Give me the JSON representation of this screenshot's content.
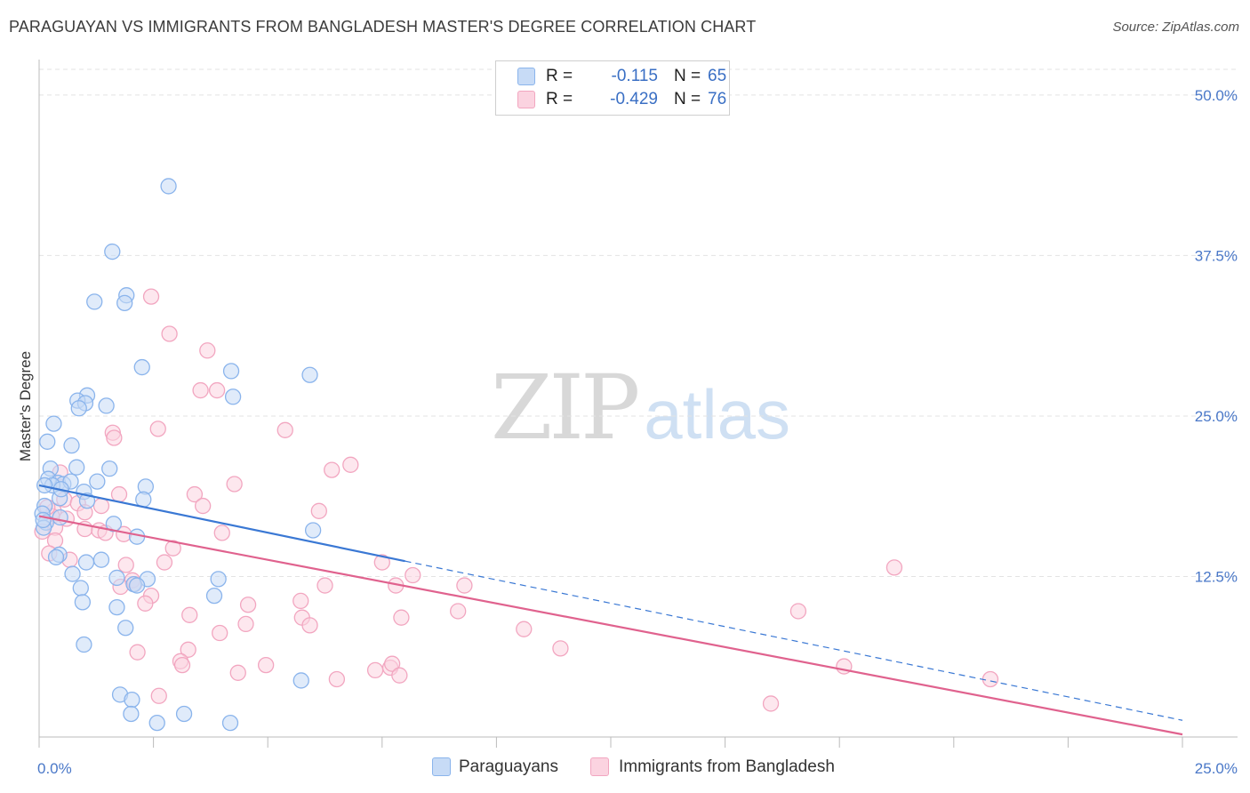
{
  "title": "PARAGUAYAN VS IMMIGRANTS FROM BANGLADESH MASTER'S DEGREE CORRELATION CHART",
  "source": "Source: ZipAtlas.com",
  "watermark": {
    "zip": "ZIP",
    "atlas": "atlas"
  },
  "legend": {
    "rows": [
      {
        "r_label": "R =",
        "r_value": "-0.115",
        "n_label": "N =",
        "n_value": "65",
        "color": "#8ab4ec",
        "fill": "#c7dbf6"
      },
      {
        "r_label": "R =",
        "r_value": "-0.429",
        "n_label": "N =",
        "n_value": "76",
        "color": "#f2a6c0",
        "fill": "#fbd3e0"
      }
    ]
  },
  "bottom_legend": [
    {
      "label": "Paraguayans",
      "color": "#8ab4ec",
      "fill": "#c7dbf6"
    },
    {
      "label": "Immigrants from Bangladesh",
      "color": "#f2a6c0",
      "fill": "#fbd3e0"
    }
  ],
  "chart_data": {
    "type": "scatter",
    "title": "PARAGUAYAN VS IMMIGRANTS FROM BANGLADESH MASTER'S DEGREE CORRELATION CHART",
    "xlabel": "",
    "ylabel": "Master's Degree",
    "xlim": [
      0,
      25
    ],
    "ylim": [
      0,
      52
    ],
    "x_tick_labels": [
      "0.0%",
      "25.0%"
    ],
    "y_ticks": [
      12.5,
      25.0,
      37.5,
      50.0
    ],
    "y_tick_labels": [
      "12.5%",
      "25.0%",
      "37.5%",
      "50.0%"
    ],
    "grid": true,
    "series": [
      {
        "name": "Paraguayans",
        "color": "#3a78d4",
        "marker_stroke": "#8ab4ec",
        "marker_fill": "#c7dbf6",
        "points": [
          [
            2.83,
            42.9
          ],
          [
            1.6,
            37.8
          ],
          [
            1.91,
            34.4
          ],
          [
            1.87,
            33.8
          ],
          [
            1.21,
            33.9
          ],
          [
            2.25,
            28.8
          ],
          [
            4.2,
            28.5
          ],
          [
            5.92,
            28.2
          ],
          [
            1.05,
            26.6
          ],
          [
            0.84,
            26.2
          ],
          [
            1.01,
            26.0
          ],
          [
            0.87,
            25.6
          ],
          [
            4.24,
            26.5
          ],
          [
            1.47,
            25.8
          ],
          [
            0.32,
            24.4
          ],
          [
            0.18,
            23.0
          ],
          [
            0.71,
            22.7
          ],
          [
            0.82,
            21.0
          ],
          [
            1.54,
            20.9
          ],
          [
            0.25,
            20.9
          ],
          [
            0.2,
            20.1
          ],
          [
            0.41,
            19.8
          ],
          [
            0.53,
            19.7
          ],
          [
            0.29,
            19.6
          ],
          [
            0.69,
            19.9
          ],
          [
            1.27,
            19.9
          ],
          [
            2.33,
            19.5
          ],
          [
            0.98,
            19.1
          ],
          [
            0.45,
            18.6
          ],
          [
            1.05,
            18.4
          ],
          [
            2.28,
            18.5
          ],
          [
            0.12,
            18.0
          ],
          [
            0.07,
            17.4
          ],
          [
            0.46,
            17.1
          ],
          [
            0.15,
            16.7
          ],
          [
            1.63,
            16.6
          ],
          [
            0.1,
            16.3
          ],
          [
            5.99,
            16.1
          ],
          [
            2.14,
            15.6
          ],
          [
            0.44,
            14.2
          ],
          [
            0.37,
            14.0
          ],
          [
            1.36,
            13.8
          ],
          [
            1.03,
            13.6
          ],
          [
            0.73,
            12.7
          ],
          [
            1.7,
            12.4
          ],
          [
            2.37,
            12.3
          ],
          [
            3.92,
            12.3
          ],
          [
            2.07,
            11.9
          ],
          [
            0.91,
            11.6
          ],
          [
            2.14,
            11.8
          ],
          [
            3.83,
            11.0
          ],
          [
            0.95,
            10.5
          ],
          [
            1.7,
            10.1
          ],
          [
            1.89,
            8.5
          ],
          [
            0.98,
            7.2
          ],
          [
            5.73,
            4.4
          ],
          [
            1.77,
            3.3
          ],
          [
            2.03,
            2.9
          ],
          [
            2.01,
            1.8
          ],
          [
            3.17,
            1.8
          ],
          [
            2.58,
            1.1
          ],
          [
            4.18,
            1.1
          ],
          [
            0.12,
            19.6
          ],
          [
            0.48,
            19.3
          ],
          [
            0.09,
            16.9
          ]
        ],
        "trend_line": {
          "x1": 0,
          "y1": 19.6,
          "x2": 8.0,
          "y2": 13.7,
          "dashed_to": {
            "x": 25,
            "y": 1.3
          }
        }
      },
      {
        "name": "Immigrants from Bangladesh",
        "color": "#e0628e",
        "marker_stroke": "#f2a6c0",
        "marker_fill": "#fbd3e0",
        "points": [
          [
            2.45,
            34.3
          ],
          [
            2.85,
            31.4
          ],
          [
            3.68,
            30.1
          ],
          [
            3.53,
            27.0
          ],
          [
            3.89,
            27.0
          ],
          [
            2.6,
            24.0
          ],
          [
            5.38,
            23.9
          ],
          [
            1.61,
            23.7
          ],
          [
            1.64,
            23.3
          ],
          [
            6.81,
            21.2
          ],
          [
            6.4,
            20.8
          ],
          [
            0.46,
            20.6
          ],
          [
            4.27,
            19.7
          ],
          [
            1.75,
            18.9
          ],
          [
            3.4,
            18.9
          ],
          [
            0.55,
            18.5
          ],
          [
            0.85,
            18.2
          ],
          [
            1.36,
            18.0
          ],
          [
            3.58,
            18.0
          ],
          [
            0.32,
            17.6
          ],
          [
            1.0,
            17.5
          ],
          [
            6.12,
            17.6
          ],
          [
            0.6,
            17.0
          ],
          [
            0.28,
            17.2
          ],
          [
            0.35,
            16.3
          ],
          [
            1.0,
            16.2
          ],
          [
            1.31,
            16.1
          ],
          [
            4.0,
            15.9
          ],
          [
            1.85,
            15.8
          ],
          [
            1.45,
            15.9
          ],
          [
            0.35,
            15.3
          ],
          [
            2.93,
            14.7
          ],
          [
            0.22,
            14.3
          ],
          [
            0.67,
            13.8
          ],
          [
            2.74,
            13.6
          ],
          [
            7.5,
            13.6
          ],
          [
            1.9,
            13.4
          ],
          [
            18.7,
            13.2
          ],
          [
            8.17,
            12.6
          ],
          [
            2.04,
            12.2
          ],
          [
            2.08,
            11.9
          ],
          [
            1.78,
            11.7
          ],
          [
            6.25,
            11.8
          ],
          [
            7.8,
            11.8
          ],
          [
            9.3,
            11.8
          ],
          [
            2.45,
            11.0
          ],
          [
            5.72,
            10.6
          ],
          [
            2.32,
            10.4
          ],
          [
            4.57,
            10.3
          ],
          [
            9.16,
            9.8
          ],
          [
            16.6,
            9.8
          ],
          [
            3.29,
            9.5
          ],
          [
            5.75,
            9.3
          ],
          [
            7.92,
            9.3
          ],
          [
            4.52,
            8.8
          ],
          [
            5.92,
            8.7
          ],
          [
            10.6,
            8.4
          ],
          [
            3.95,
            8.1
          ],
          [
            2.15,
            6.6
          ],
          [
            3.26,
            6.8
          ],
          [
            11.4,
            6.9
          ],
          [
            3.09,
            5.9
          ],
          [
            3.13,
            5.6
          ],
          [
            4.35,
            5.0
          ],
          [
            4.96,
            5.6
          ],
          [
            7.35,
            5.2
          ],
          [
            7.68,
            5.4
          ],
          [
            7.72,
            5.7
          ],
          [
            6.51,
            4.5
          ],
          [
            7.88,
            4.8
          ],
          [
            17.6,
            5.5
          ],
          [
            20.8,
            4.5
          ],
          [
            2.62,
            3.2
          ],
          [
            16.0,
            2.6
          ],
          [
            0.07,
            16.0
          ],
          [
            0.18,
            17.9
          ]
        ],
        "trend_line": {
          "x1": 0,
          "y1": 17.2,
          "x2": 25,
          "y2": 0.2
        }
      }
    ]
  }
}
